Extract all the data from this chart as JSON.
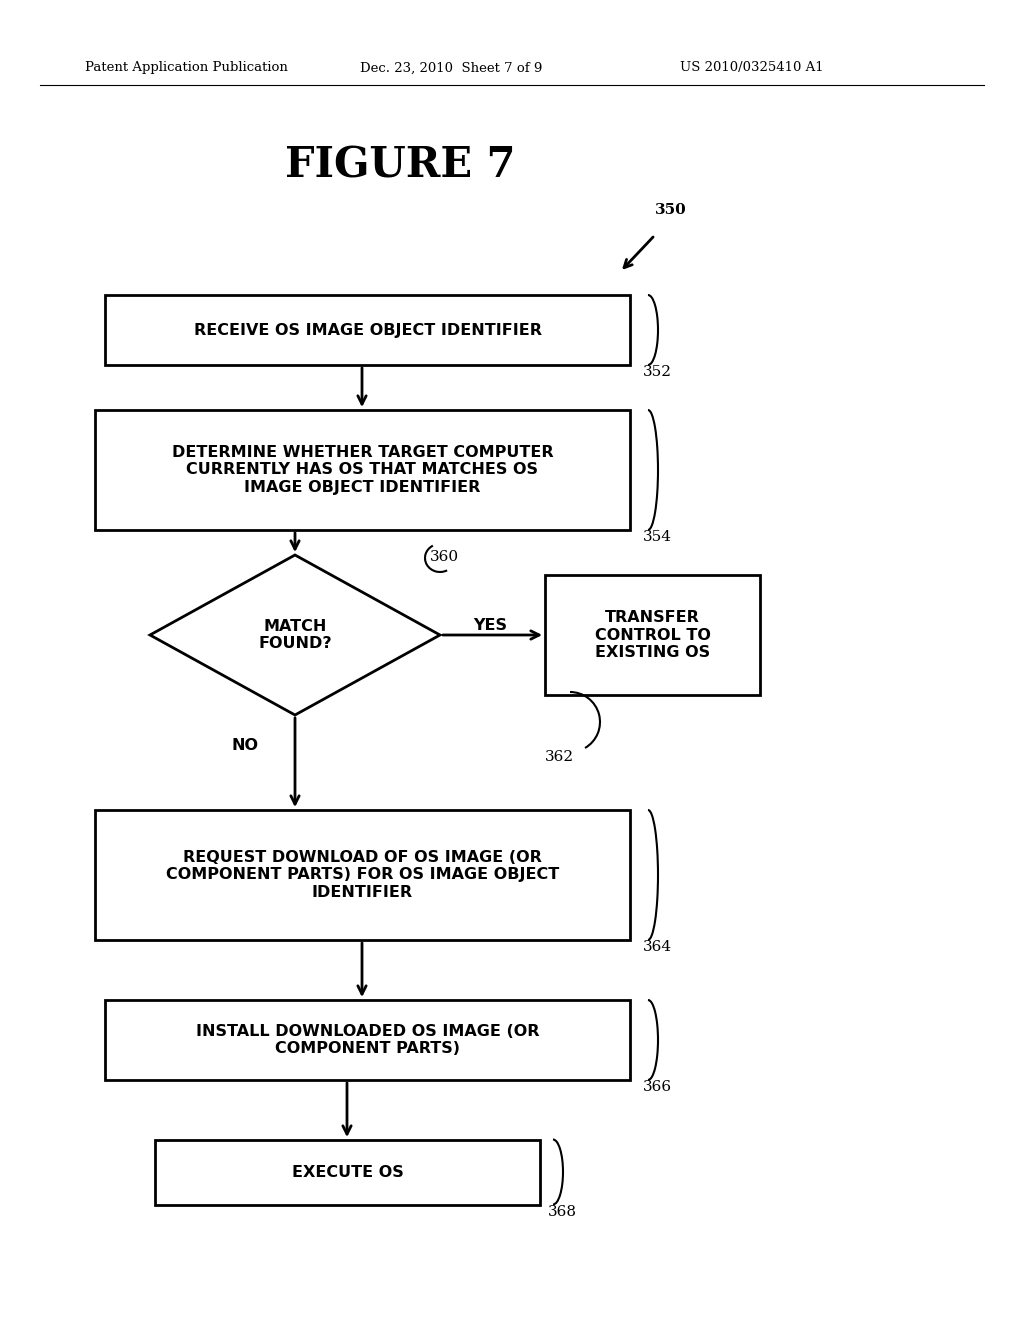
{
  "bg_color": "#ffffff",
  "title": "FIGURE 7",
  "header_left": "Patent Application Publication",
  "header_mid": "Dec. 23, 2010  Sheet 7 of 9",
  "header_right": "US 2010/0325410 A1",
  "fig_width": 10.24,
  "fig_height": 13.2,
  "dpi": 100
}
